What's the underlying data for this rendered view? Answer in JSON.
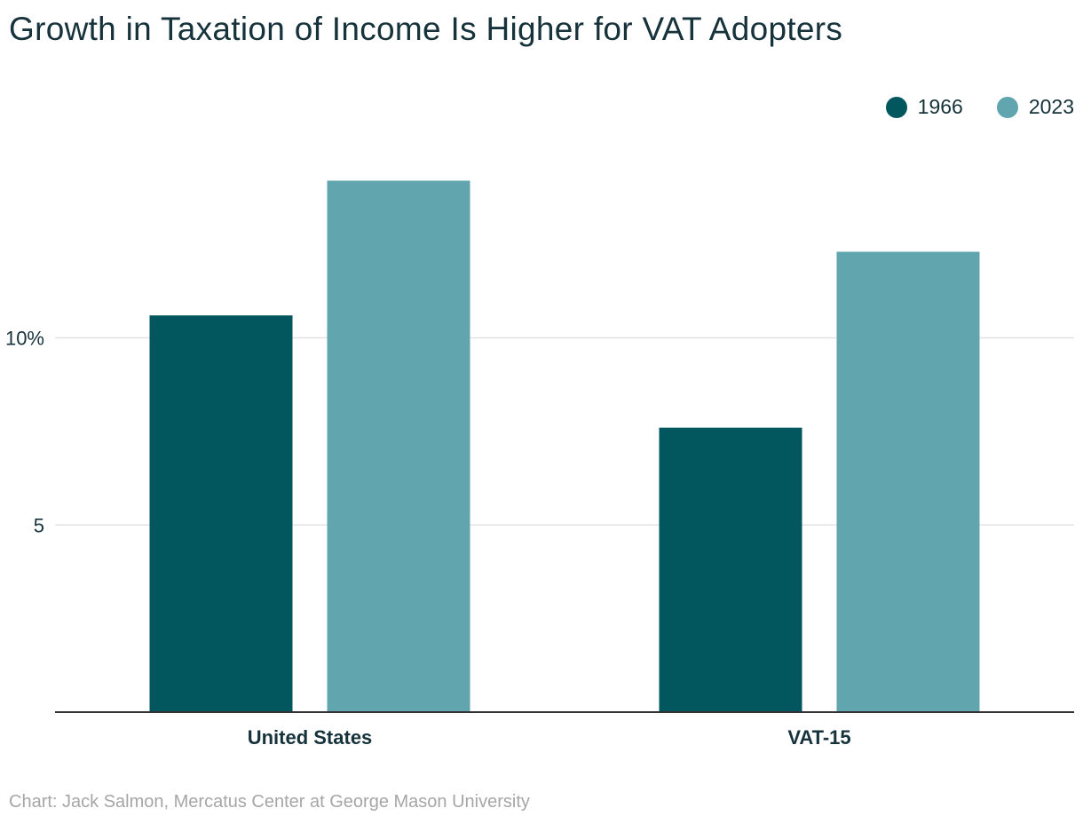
{
  "title": "Growth in Taxation of Income Is Higher for VAT Adopters",
  "source": "Chart: Jack Salmon, Mercatus Center at George Mason University",
  "colors": {
    "series_1966": "#02575e",
    "series_2023": "#61a6ae",
    "text": "#16323b",
    "grid": "#e3e3e3",
    "axis": "#333333",
    "source": "#a6a6a6"
  },
  "chart_data": {
    "type": "bar",
    "title": "Growth in Taxation of Income Is Higher for VAT Adopters",
    "categories": [
      "United States",
      "VAT-15"
    ],
    "series": [
      {
        "name": "1966",
        "values": [
          10.6,
          7.6
        ]
      },
      {
        "name": "2023",
        "values": [
          14.2,
          12.3
        ]
      }
    ],
    "xlabel": "",
    "ylabel": "",
    "ylim": [
      0,
      15
    ],
    "yticks": [
      {
        "value": 5,
        "label": "5"
      },
      {
        "value": 10,
        "label": "10%"
      }
    ],
    "grid": true,
    "legend_position": "top-right"
  }
}
